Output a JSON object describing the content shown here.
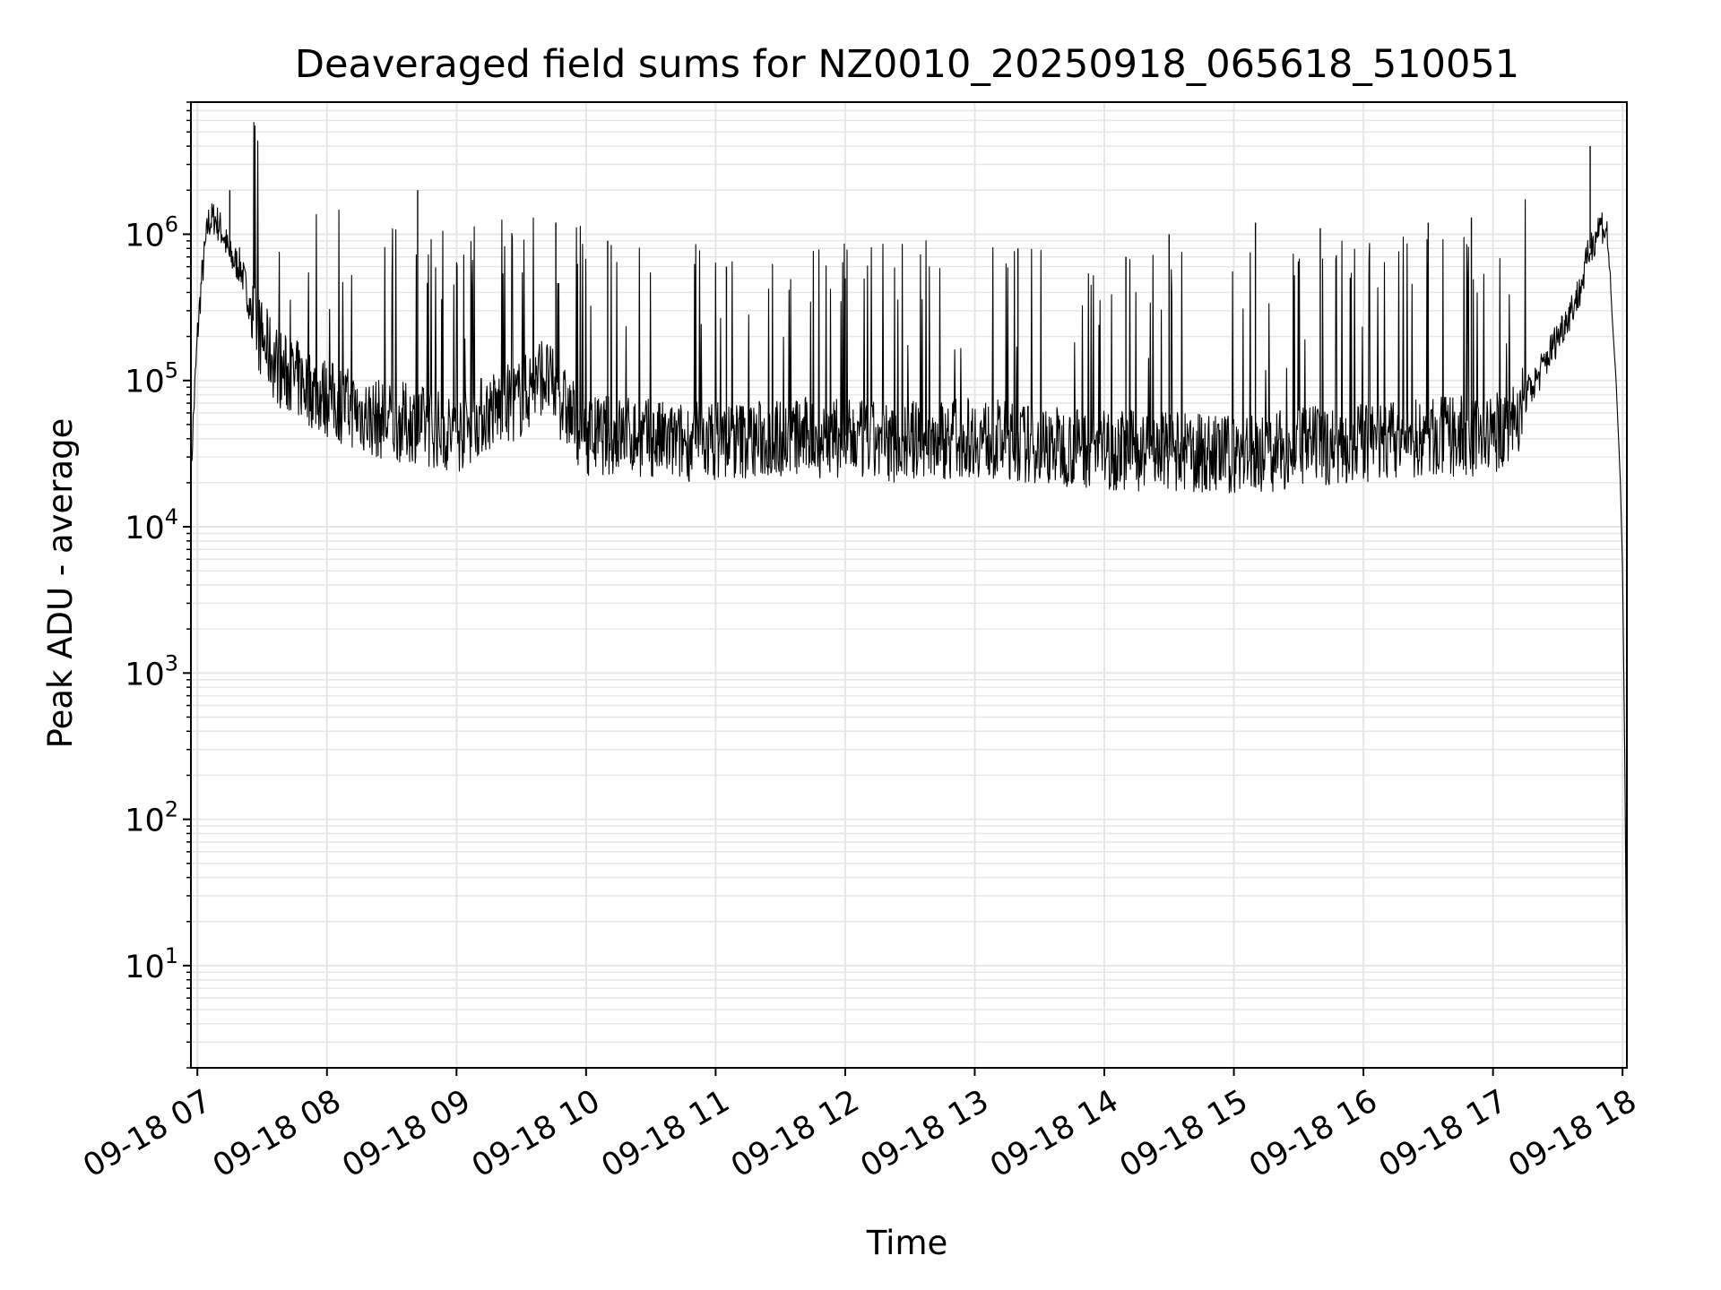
{
  "chart_data": {
    "type": "line",
    "title": "Deaveraged field sums for NZ0010_20250918_065618_510051",
    "xlabel": "Time",
    "ylabel": "Peak ADU - average",
    "y_scale": "log",
    "grid": true,
    "grid_minor": true,
    "line_color": "#000000",
    "grid_color": "#e6e6e6",
    "xlim": [
      "09-18 06:57",
      "09-18 18:02"
    ],
    "ylim": [
      2,
      8000000
    ],
    "x_ticks": [
      {
        "value": "09-18 07:00",
        "label": "09-18 07"
      },
      {
        "value": "09-18 08:00",
        "label": "09-18 08"
      },
      {
        "value": "09-18 09:00",
        "label": "09-18 09"
      },
      {
        "value": "09-18 10:00",
        "label": "09-18 10"
      },
      {
        "value": "09-18 11:00",
        "label": "09-18 11"
      },
      {
        "value": "09-18 12:00",
        "label": "09-18 12"
      },
      {
        "value": "09-18 13:00",
        "label": "09-18 13"
      },
      {
        "value": "09-18 14:00",
        "label": "09-18 14"
      },
      {
        "value": "09-18 15:00",
        "label": "09-18 15"
      },
      {
        "value": "09-18 16:00",
        "label": "09-18 16"
      },
      {
        "value": "09-18 17:00",
        "label": "09-18 17"
      },
      {
        "value": "09-18 18:00",
        "label": "09-18 18"
      }
    ],
    "y_ticks": [
      {
        "value": 10,
        "base": "10",
        "exp": "1"
      },
      {
        "value": 100,
        "base": "10",
        "exp": "2"
      },
      {
        "value": 1000,
        "base": "10",
        "exp": "3"
      },
      {
        "value": 10000,
        "base": "10",
        "exp": "4"
      },
      {
        "value": 100000,
        "base": "10",
        "exp": "5"
      },
      {
        "value": 1000000,
        "base": "10",
        "exp": "6"
      }
    ],
    "series": [
      {
        "x": [
          "09-18 06:57",
          "09-18 06:58",
          "09-18 07:00",
          "09-18 07:02",
          "09-18 07:05",
          "09-18 07:08",
          "09-18 07:12",
          "09-18 07:15",
          "09-18 07:20",
          "09-18 07:25",
          "09-18 07:30",
          "09-18 07:35",
          "09-18 07:40",
          "09-18 07:50",
          "09-18 08:00",
          "09-18 08:10",
          "09-18 08:20",
          "09-18 08:30",
          "09-18 08:40",
          "09-18 08:50",
          "09-18 09:00",
          "09-18 09:10",
          "09-18 09:20",
          "09-18 09:30",
          "09-18 09:40",
          "09-18 09:50",
          "09-18 10:00",
          "09-18 10:20",
          "09-18 10:40",
          "09-18 11:00",
          "09-18 11:20",
          "09-18 11:40",
          "09-18 12:00",
          "09-18 12:20",
          "09-18 12:40",
          "09-18 13:00",
          "09-18 13:20",
          "09-18 13:40",
          "09-18 14:00",
          "09-18 14:20",
          "09-18 14:40",
          "09-18 15:00",
          "09-18 15:20",
          "09-18 15:40",
          "09-18 16:00",
          "09-18 16:20",
          "09-18 16:40",
          "09-18 17:00",
          "09-18 17:10",
          "09-18 17:20",
          "09-18 17:30",
          "09-18 17:40",
          "09-18 17:45",
          "09-18 17:50",
          "09-18 17:53",
          "09-18 17:55",
          "09-18 17:57",
          "09-18 17:59",
          "09-18 18:00",
          "09-18 18:01",
          "09-18 18:02"
        ],
        "y": [
          20000,
          50000,
          200000,
          500000,
          1200000,
          1300000,
          1000000,
          700000,
          600000,
          300000,
          200000,
          150000,
          120000,
          100000,
          80000,
          70000,
          60000,
          55000,
          55000,
          50000,
          45000,
          60000,
          70000,
          80000,
          120000,
          70000,
          45000,
          45000,
          40000,
          42000,
          42000,
          44000,
          42000,
          40000,
          42000,
          44000,
          40000,
          38000,
          36000,
          35000,
          34000,
          33000,
          35000,
          38000,
          40000,
          42000,
          44000,
          45000,
          60000,
          100000,
          200000,
          400000,
          800000,
          1200000,
          1000000,
          300000,
          100000,
          20000,
          5000,
          300,
          4
        ]
      }
    ],
    "peaks": [
      {
        "x": "09-18 07:15",
        "y": 2000000
      },
      {
        "x": "09-18 08:42",
        "y": 2000000
      },
      {
        "x": "09-18 09:46",
        "y": 1200000
      },
      {
        "x": "09-18 10:10",
        "y": 900000
      },
      {
        "x": "09-18 11:05",
        "y": 600000
      },
      {
        "x": "09-18 12:00",
        "y": 500000
      },
      {
        "x": "09-18 13:20",
        "y": 800000
      },
      {
        "x": "09-18 14:10",
        "y": 700000
      },
      {
        "x": "09-18 14:30",
        "y": 1000000
      },
      {
        "x": "09-18 15:10",
        "y": 1200000
      },
      {
        "x": "09-18 15:40",
        "y": 1100000
      },
      {
        "x": "09-18 16:30",
        "y": 1200000
      },
      {
        "x": "09-18 16:50",
        "y": 1300000
      },
      {
        "x": "09-18 17:45",
        "y": 4000000
      }
    ]
  }
}
